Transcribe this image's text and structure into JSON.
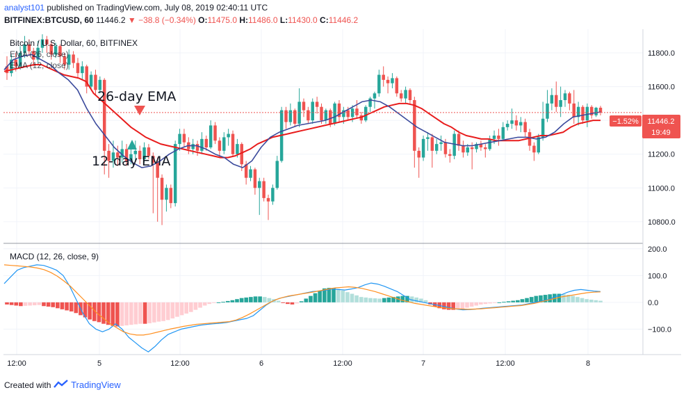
{
  "header": {
    "user": "analyst101",
    "published_text": " published on TradingView.com, July 08, 2019 02:40:11 UTC",
    "symbol": "BITFINEX:BTCUSD, 60",
    "last_price": "11446.2",
    "change": "▼ −38.8 (−0.34%)",
    "o_label": "O:",
    "o_value": "11475.0",
    "h_label": "H:",
    "h_value": "11486.0",
    "l_label": "L:",
    "l_value": "11430.0",
    "c_label": "C:",
    "c_value": "11446.2"
  },
  "legend": {
    "title": "Bitcoin / U.S. Dollar, 60, BITFINEX",
    "ema1": "EMA (26, close)",
    "ema2": "EMA (12, close)",
    "macd": "MACD (12, 26, close, 9)"
  },
  "annotations": {
    "ema26": "26-day EMA",
    "ema12": "12-day EMA"
  },
  "price_tags": {
    "change_pct": "−1.52%",
    "price": "11446.2",
    "countdown": "19:49"
  },
  "footer": {
    "created": "Created with",
    "brand": "TradingView"
  },
  "colors": {
    "up": "#26a69a",
    "down": "#ef5350",
    "ema26": "#e81c1c",
    "ema12": "#3b4a9c",
    "macd_line": "#2196f3",
    "signal_line": "#ff8f1f",
    "hist_up_strong": "#26a69a",
    "hist_up_weak": "#b2dfdb",
    "hist_down_strong": "#ef5350",
    "hist_down_weak": "#ffcdd2",
    "annotation_red": "#ef5350",
    "annotation_green": "#26a69a"
  },
  "chart_data": {
    "type": "candlestick",
    "title": "Bitcoin / U.S. Dollar, 60, BITFINEX",
    "price_axis": {
      "ticks": [
        10800,
        11000,
        11200,
        11400,
        11600,
        11800
      ],
      "labels": [
        "10800.0",
        "11000.0",
        "11200.0",
        "11400.0",
        "11600.0",
        "11800.0"
      ],
      "range": [
        10680,
        11940
      ]
    },
    "time_axis": {
      "labels": [
        "12:00",
        "5",
        "12:00",
        "6",
        "12:00",
        "7",
        "12:00",
        "8"
      ]
    },
    "candles": [
      [
        11720,
        11680,
        11780,
        11640
      ],
      [
        11680,
        11760,
        11790,
        11660
      ],
      [
        11760,
        11720,
        11800,
        11690
      ],
      [
        11720,
        11800,
        11840,
        11700
      ],
      [
        11800,
        11850,
        11900,
        11770
      ],
      [
        11850,
        11810,
        11880,
        11780
      ],
      [
        11810,
        11760,
        11830,
        11720
      ],
      [
        11760,
        11830,
        11870,
        11740
      ],
      [
        11830,
        11880,
        11910,
        11800
      ],
      [
        11880,
        11850,
        11900,
        11800
      ],
      [
        11850,
        11790,
        11870,
        11760
      ],
      [
        11790,
        11840,
        11860,
        11770
      ],
      [
        11840,
        11780,
        11850,
        11740
      ],
      [
        11780,
        11730,
        11800,
        11700
      ],
      [
        11730,
        11790,
        11820,
        11700
      ],
      [
        11790,
        11740,
        11810,
        11710
      ],
      [
        11740,
        11680,
        11770,
        11650
      ],
      [
        11680,
        11720,
        11750,
        11640
      ],
      [
        11720,
        11600,
        11730,
        11560
      ],
      [
        11600,
        11670,
        11690,
        11580
      ],
      [
        11670,
        11580,
        11700,
        11550
      ],
      [
        11580,
        11640,
        11660,
        11560
      ],
      [
        11640,
        11220,
        11650,
        11080
      ],
      [
        11220,
        11160,
        11260,
        11060
      ],
      [
        11160,
        11210,
        11280,
        11120
      ],
      [
        11210,
        11180,
        11250,
        11130
      ],
      [
        11180,
        11230,
        11280,
        11150
      ],
      [
        11230,
        11160,
        11260,
        11130
      ],
      [
        11160,
        11200,
        11240,
        11140
      ],
      [
        11200,
        11220,
        11280,
        11160
      ],
      [
        11220,
        11170,
        11250,
        11140
      ],
      [
        11170,
        11240,
        11270,
        11150
      ],
      [
        11240,
        11190,
        11260,
        11170
      ],
      [
        11190,
        11150,
        11210,
        10850
      ],
      [
        11150,
        11060,
        11180,
        10800
      ],
      [
        11060,
        10930,
        11080,
        10780
      ],
      [
        10930,
        11000,
        11020,
        10860
      ],
      [
        11000,
        10910,
        11020,
        10880
      ],
      [
        10910,
        11260,
        11280,
        10890
      ],
      [
        11260,
        11320,
        11350,
        11220
      ],
      [
        11320,
        11270,
        11350,
        11240
      ],
      [
        11270,
        11230,
        11300,
        11200
      ],
      [
        11230,
        11260,
        11290,
        11200
      ],
      [
        11260,
        11220,
        11280,
        11190
      ],
      [
        11220,
        11290,
        11330,
        11200
      ],
      [
        11290,
        11240,
        11310,
        11220
      ],
      [
        11240,
        11370,
        11400,
        11230
      ],
      [
        11370,
        11280,
        11390,
        11260
      ],
      [
        11280,
        11220,
        11300,
        11180
      ],
      [
        11220,
        11300,
        11330,
        11200
      ],
      [
        11300,
        11320,
        11350,
        11250
      ],
      [
        11320,
        11200,
        11340,
        11190
      ],
      [
        11200,
        11260,
        11290,
        11180
      ],
      [
        11260,
        11140,
        11270,
        11100
      ],
      [
        11140,
        11060,
        11160,
        11020
      ],
      [
        11060,
        11110,
        11130,
        11040
      ],
      [
        11110,
        11000,
        11120,
        10960
      ],
      [
        11000,
        11040,
        11060,
        10840
      ],
      [
        11040,
        10940,
        11060,
        10920
      ],
      [
        10940,
        10920,
        10960,
        10810
      ],
      [
        10920,
        11000,
        11020,
        10900
      ],
      [
        11000,
        11160,
        11190,
        10990
      ],
      [
        11160,
        11460,
        11480,
        11150
      ],
      [
        11460,
        11390,
        11480,
        11350
      ],
      [
        11390,
        11460,
        11500,
        11370
      ],
      [
        11460,
        11380,
        11470,
        11360
      ],
      [
        11380,
        11510,
        11590,
        11360
      ],
      [
        11510,
        11460,
        11530,
        11420
      ],
      [
        11460,
        11400,
        11480,
        11380
      ],
      [
        11400,
        11510,
        11530,
        11380
      ],
      [
        11510,
        11480,
        11540,
        11440
      ],
      [
        11480,
        11400,
        11500,
        11380
      ],
      [
        11400,
        11460,
        11470,
        11380
      ],
      [
        11460,
        11380,
        11470,
        11360
      ],
      [
        11380,
        11500,
        11510,
        11370
      ],
      [
        11500,
        11420,
        11520,
        11390
      ],
      [
        11420,
        11460,
        11480,
        11380
      ],
      [
        11460,
        11420,
        11480,
        11400
      ],
      [
        11420,
        11470,
        11490,
        11390
      ],
      [
        11470,
        11430,
        11520,
        11410
      ],
      [
        11430,
        11400,
        11450,
        11380
      ],
      [
        11400,
        11480,
        11490,
        11390
      ],
      [
        11480,
        11530,
        11540,
        11450
      ],
      [
        11530,
        11560,
        11570,
        11470
      ],
      [
        11560,
        11670,
        11700,
        11540
      ],
      [
        11670,
        11640,
        11720,
        11600
      ],
      [
        11640,
        11620,
        11660,
        11560
      ],
      [
        11620,
        11650,
        11680,
        11590
      ],
      [
        11650,
        11560,
        11660,
        11540
      ],
      [
        11560,
        11530,
        11580,
        11510
      ],
      [
        11530,
        11580,
        11600,
        11500
      ],
      [
        11580,
        11520,
        11590,
        11500
      ],
      [
        11520,
        11220,
        11540,
        11120
      ],
      [
        11220,
        11180,
        11240,
        11060
      ],
      [
        11180,
        11290,
        11310,
        11160
      ],
      [
        11290,
        11300,
        11330,
        11220
      ],
      [
        11300,
        11220,
        11320,
        11120
      ],
      [
        11220,
        11260,
        11290,
        11200
      ],
      [
        11260,
        11270,
        11310,
        11220
      ],
      [
        11270,
        11200,
        11290,
        11180
      ],
      [
        11200,
        11190,
        11230,
        11150
      ],
      [
        11190,
        11320,
        11340,
        11170
      ],
      [
        11320,
        11250,
        11340,
        11220
      ],
      [
        11250,
        11210,
        11280,
        11180
      ],
      [
        11210,
        11240,
        11260,
        11190
      ],
      [
        11240,
        11230,
        11270,
        11110
      ],
      [
        11230,
        11260,
        11270,
        11210
      ],
      [
        11260,
        11240,
        11280,
        11220
      ],
      [
        11240,
        11230,
        11260,
        11180
      ],
      [
        11230,
        11290,
        11310,
        11220
      ],
      [
        11290,
        11310,
        11340,
        11260
      ],
      [
        11310,
        11290,
        11350,
        11250
      ],
      [
        11290,
        11360,
        11390,
        11280
      ],
      [
        11360,
        11380,
        11400,
        11340
      ],
      [
        11380,
        11400,
        11470,
        11350
      ],
      [
        11400,
        11370,
        11430,
        11340
      ],
      [
        11370,
        11390,
        11420,
        11330
      ],
      [
        11390,
        11330,
        11410,
        11300
      ],
      [
        11330,
        11250,
        11350,
        11220
      ],
      [
        11250,
        11210,
        11270,
        11160
      ],
      [
        11210,
        11300,
        11320,
        11200
      ],
      [
        11300,
        11410,
        11510,
        11280
      ],
      [
        11410,
        11500,
        11580,
        11390
      ],
      [
        11500,
        11550,
        11590,
        11460
      ],
      [
        11550,
        11480,
        11630,
        11450
      ],
      [
        11480,
        11520,
        11600,
        11420
      ],
      [
        11520,
        11560,
        11580,
        11480
      ],
      [
        11560,
        11500,
        11570,
        11460
      ],
      [
        11500,
        11420,
        11580,
        11380
      ],
      [
        11420,
        11480,
        11510,
        11370
      ],
      [
        11480,
        11400,
        11490,
        11380
      ],
      [
        11400,
        11480,
        11500,
        11360
      ],
      [
        11480,
        11430,
        11490,
        11410
      ],
      [
        11430,
        11475,
        11480,
        11420
      ],
      [
        11475,
        11446,
        11486,
        11430
      ]
    ],
    "ema26_values": [
      11690,
      11700,
      11710,
      11720,
      11730,
      11730,
      11710,
      11690,
      11670,
      11660,
      11650,
      11630,
      11560,
      11520,
      11480,
      11440,
      11400,
      11360,
      11330,
      11300,
      11280,
      11260,
      11250,
      11240,
      11230,
      11220,
      11210,
      11200,
      11190,
      11180,
      11180,
      11190,
      11210,
      11230,
      11260,
      11280,
      11300,
      11310,
      11320,
      11330,
      11340,
      11350,
      11360,
      11370,
      11380,
      11390,
      11400,
      11410,
      11420,
      11440,
      11460,
      11480,
      11490,
      11500,
      11500,
      11490,
      11470,
      11440,
      11410,
      11380,
      11360,
      11330,
      11310,
      11300,
      11290,
      11290,
      11280,
      11280,
      11280,
      11280,
      11290,
      11300,
      11310,
      11310,
      11320,
      11330,
      11360,
      11380,
      11390,
      11400,
      11400
    ],
    "ema12_values": [
      11700,
      11760,
      11780,
      11790,
      11760,
      11730,
      11680,
      11640,
      11580,
      11470,
      11380,
      11310,
      11240,
      11190,
      11150,
      11120,
      11130,
      11160,
      11200,
      11230,
      11250,
      11250,
      11230,
      11200,
      11180,
      11140,
      11120,
      11160,
      11240,
      11300,
      11330,
      11350,
      11370,
      11380,
      11390,
      11400,
      11420,
      11450,
      11480,
      11510,
      11520,
      11510,
      11480,
      11440,
      11400,
      11360,
      11330,
      11300,
      11270,
      11260,
      11250,
      11250,
      11260,
      11270,
      11280,
      11290,
      11300,
      11300,
      11290,
      11300,
      11330,
      11380,
      11420,
      11430,
      11440,
      11450
    ],
    "macd": {
      "ticks": [
        -100,
        0,
        100,
        200
      ],
      "labels": [
        "−100.0",
        "0.0",
        "100.0",
        "200.0"
      ],
      "range": [
        -195,
        215
      ],
      "histogram": [
        -8,
        -10,
        -12,
        -14,
        -13,
        -12,
        -11,
        -10,
        -14,
        -16,
        -18,
        -22,
        -26,
        -30,
        -34,
        -40,
        -48,
        -56,
        -64,
        -70,
        -74,
        -80,
        -84,
        -88,
        -90,
        -88,
        -86,
        -84,
        -82,
        -80,
        -80,
        -78,
        -75,
        -72,
        -70,
        -66,
        -60,
        -54,
        -48,
        -42,
        -36,
        -28,
        -20,
        -12,
        -6,
        -2,
        0,
        2,
        5,
        8,
        12,
        16,
        18,
        20,
        22,
        22,
        20,
        16,
        12,
        6,
        -2,
        -6,
        -8,
        -4,
        4,
        14,
        24,
        34,
        44,
        52,
        54,
        54,
        50,
        44,
        38,
        32,
        26,
        20,
        18,
        16,
        15,
        14,
        16,
        18,
        20,
        22,
        24,
        24,
        22,
        18,
        14,
        8,
        -8,
        -16,
        -22,
        -26,
        -28,
        -28,
        -26,
        -24,
        -20,
        -16,
        -12,
        -8,
        -6,
        -4,
        -2,
        0,
        2,
        4,
        6,
        8,
        12,
        16,
        20,
        24,
        26,
        28,
        30,
        32,
        32,
        30,
        28,
        24,
        20,
        16,
        12,
        10,
        8,
        6
      ],
      "macd_line": [
        70,
        95,
        120,
        130,
        135,
        140,
        138,
        130,
        120,
        100,
        60,
        10,
        -40,
        -80,
        -100,
        -110,
        -100,
        -80,
        -100,
        -130,
        -150,
        -170,
        -185,
        -165,
        -140,
        -120,
        -110,
        -100,
        -95,
        -90,
        -85,
        -82,
        -80,
        -78,
        -75,
        -70,
        -65,
        -60,
        -50,
        -30,
        -10,
        5,
        15,
        20,
        25,
        30,
        35,
        40,
        42,
        45,
        50,
        48,
        46,
        50,
        55,
        65,
        72,
        68,
        60,
        50,
        40,
        25,
        10,
        5,
        0,
        -5,
        -10,
        -15,
        -20,
        -25,
        -28,
        -27,
        -25,
        -22,
        -20,
        -18,
        -16,
        -14,
        -12,
        -10,
        -5,
        0,
        5,
        10,
        20,
        28,
        38,
        45,
        48,
        45,
        42,
        40
      ],
      "signal_line": [
        140,
        138,
        136,
        134,
        132,
        128,
        122,
        112,
        98,
        80,
        60,
        35,
        10,
        -15,
        -40,
        -60,
        -80,
        -95,
        -110,
        -118,
        -122,
        -122,
        -118,
        -112,
        -106,
        -100,
        -95,
        -90,
        -86,
        -82,
        -80,
        -78,
        -76,
        -74,
        -72,
        -66,
        -56,
        -44,
        -30,
        -16,
        -2,
        10,
        18,
        24,
        28,
        32,
        36,
        40,
        45,
        50,
        54,
        56,
        58,
        56,
        52,
        46,
        40,
        32,
        24,
        16,
        8,
        2,
        -4,
        -8,
        -12,
        -16,
        -20,
        -22,
        -24,
        -25,
        -26,
        -25,
        -24,
        -22,
        -20,
        -18,
        -16,
        -14,
        -12,
        -8,
        -4,
        2,
        8,
        14,
        20,
        24,
        28,
        32,
        36,
        38,
        39
      ]
    }
  }
}
